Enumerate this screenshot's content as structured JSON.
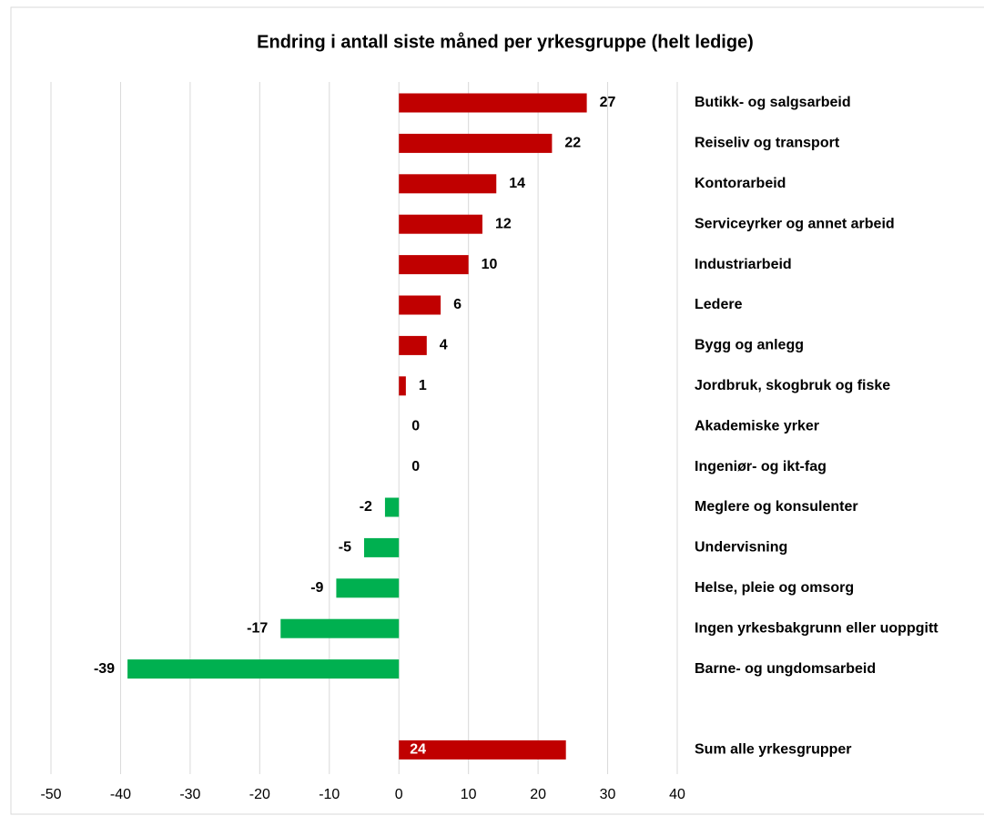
{
  "chart_data": {
    "type": "barh",
    "title": "Endring i antall siste måned per yrkesgruppe (helt ledige)",
    "categories": [
      "Butikk- og salgsarbeid",
      "Reiseliv og transport",
      "Kontorarbeid",
      "Serviceyrker og annet arbeid",
      "Industriarbeid",
      "Ledere",
      "Bygg og anlegg",
      "Jordbruk, skogbruk og fiske",
      "Akademiske yrker",
      "Ingeniør- og ikt-fag",
      "Meglere og konsulenter",
      "Undervisning",
      "Helse, pleie og omsorg",
      "Ingen yrkesbakgrunn eller uoppgitt",
      "Barne- og ungdomsarbeid",
      null,
      "Sum alle yrkesgrupper"
    ],
    "values": [
      27,
      22,
      14,
      12,
      10,
      6,
      4,
      1,
      0,
      0,
      -2,
      -5,
      -9,
      -17,
      -39,
      null,
      24
    ],
    "color_positive": "#c00000",
    "color_negative": "#00b050",
    "xlim": [
      -50,
      40
    ],
    "xticks": [
      -50,
      -40,
      -30,
      -20,
      -10,
      0,
      10,
      20,
      30,
      40
    ],
    "grid": true
  }
}
